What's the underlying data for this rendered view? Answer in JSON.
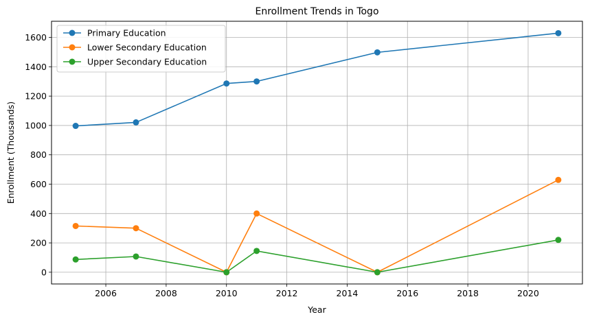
{
  "chart_data": {
    "type": "line",
    "title": "Enrollment Trends in Togo",
    "xlabel": "Year",
    "ylabel": "Enrollment (Thousands)",
    "x": [
      2005,
      2007,
      2010,
      2011,
      2015,
      2021
    ],
    "series": [
      {
        "name": "Primary Education",
        "color": "#1f77b4",
        "values": [
          997,
          1021,
          1286,
          1300,
          1498,
          1629
        ]
      },
      {
        "name": "Lower Secondary Education",
        "color": "#ff7f0e",
        "values": [
          315,
          300,
          0,
          400,
          0,
          629
        ]
      },
      {
        "name": "Upper Secondary Education",
        "color": "#2ca02c",
        "values": [
          87,
          107,
          0,
          145,
          0,
          220
        ]
      }
    ],
    "xlim": [
      2004.2,
      2021.8
    ],
    "ylim": [
      -80,
      1710
    ],
    "xticks": [
      2006,
      2008,
      2010,
      2012,
      2014,
      2016,
      2018,
      2020
    ],
    "yticks": [
      0,
      200,
      400,
      600,
      800,
      1000,
      1200,
      1400,
      1600
    ],
    "grid": true,
    "legend_position": "top-left",
    "marker": "circle"
  }
}
